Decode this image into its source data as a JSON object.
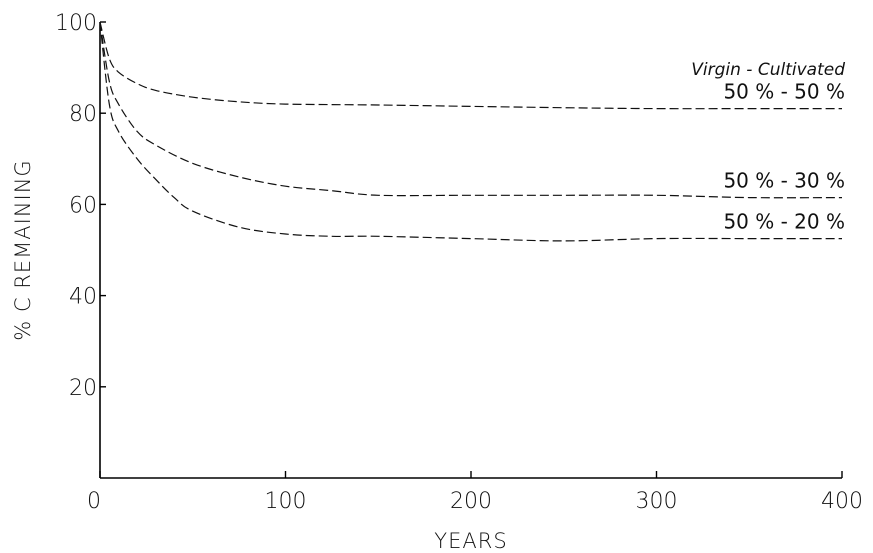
{
  "chart_data": {
    "type": "line",
    "xlabel": "YEARS",
    "ylabel": "% C REMAINING",
    "xlim": [
      0,
      400
    ],
    "ylim": [
      0,
      100
    ],
    "xticks": [
      0,
      100,
      200,
      300,
      400
    ],
    "yticks": [
      20,
      40,
      60,
      80,
      100
    ],
    "xtick_labels": [
      "0",
      "100",
      "200",
      "300",
      "400"
    ],
    "ytick_labels": [
      "20",
      "40",
      "60",
      "80",
      "100"
    ],
    "grid": false,
    "legend_title": "Virgin - Cultivated",
    "series": [
      {
        "name": "50 % - 50 %",
        "x": [
          0,
          5,
          10,
          20,
          30,
          50,
          75,
          100,
          150,
          200,
          250,
          300,
          350,
          400
        ],
        "y": [
          100,
          92,
          89,
          86.5,
          85,
          83.5,
          82.5,
          82,
          81.8,
          81.5,
          81.2,
          81,
          81,
          81
        ]
      },
      {
        "name": "50 % - 30 %",
        "x": [
          0,
          5,
          10,
          20,
          30,
          50,
          75,
          100,
          125,
          150,
          200,
          250,
          300,
          350,
          400
        ],
        "y": [
          100,
          87,
          82,
          76,
          73,
          69,
          66,
          64,
          63,
          62,
          62,
          62,
          62,
          61.5,
          61.5
        ]
      },
      {
        "name": "50 % - 20 %",
        "x": [
          0,
          5,
          10,
          20,
          30,
          40,
          50,
          75,
          100,
          125,
          150,
          200,
          250,
          300,
          350,
          400
        ],
        "y": [
          100,
          82,
          76,
          70,
          65.5,
          61.5,
          58.5,
          55,
          53.5,
          53,
          53,
          52.5,
          52,
          52.5,
          52.5,
          52.5
        ]
      }
    ]
  }
}
